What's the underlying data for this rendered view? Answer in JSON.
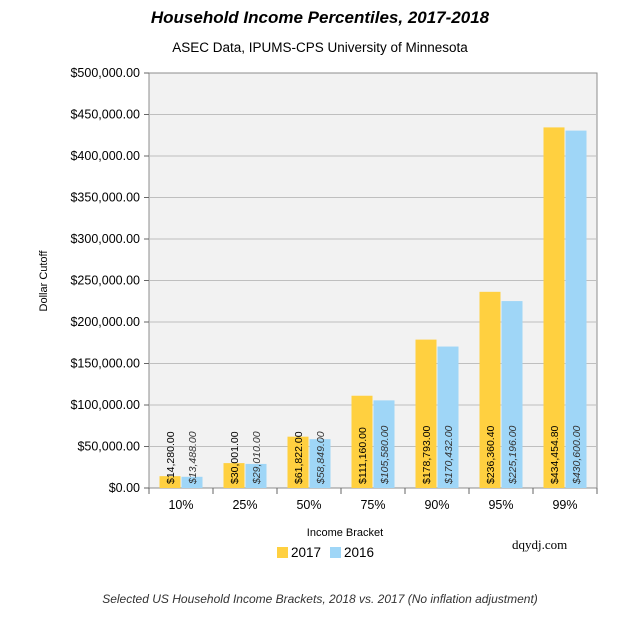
{
  "header": {
    "title": "Household Income Percentiles, 2017-2018",
    "subtitle": "ASEC Data, IPUMS-CPS University of Minnesota"
  },
  "watermark": "dqydj.com",
  "caption": "Selected US Household Income Brackets, 2018 vs. 2017 (No inflation adjustment)",
  "colors": {
    "series2017": "#ffd040",
    "series2016": "#9fd6f7",
    "plot_bg": "#f2f2f2",
    "grid": "#bfbfbf"
  },
  "chart_data": {
    "type": "bar",
    "title": "Household Income Percentiles, 2017-2018",
    "subtitle": "ASEC Data, IPUMS-CPS University of Minnesota",
    "xlabel": "Income Bracket",
    "ylabel": "Dollar Cutoff",
    "ylim": [
      0,
      500000
    ],
    "yticks": [
      0,
      50000,
      100000,
      150000,
      200000,
      250000,
      300000,
      350000,
      400000,
      450000,
      500000
    ],
    "ytick_labels": [
      "$0.00",
      "$50,000.00",
      "$100,000.00",
      "$150,000.00",
      "$200,000.00",
      "$250,000.00",
      "$300,000.00",
      "$350,000.00",
      "$400,000.00",
      "$450,000.00",
      "$500,000.00"
    ],
    "categories": [
      "10%",
      "25%",
      "50%",
      "75%",
      "90%",
      "95%",
      "99%"
    ],
    "grid": true,
    "legend": "bottom-center",
    "series": [
      {
        "name": "2017",
        "values": [
          14280,
          30001,
          61822,
          111160,
          178793,
          236360.4,
          434454.8
        ],
        "labels": [
          "$14,280.00",
          "$30,001.00",
          "$61,822.00",
          "$111,160.00",
          "$178,793.00",
          "$236,360.40",
          "$434,454.80"
        ]
      },
      {
        "name": "2016",
        "values": [
          13488,
          29010,
          58849,
          105580,
          170432,
          225196,
          430600
        ],
        "labels": [
          "$13,488.00",
          "$29,010.00",
          "$58,849.00",
          "$105,580.00",
          "$170,432.00",
          "$225,196.00",
          "$430,600.00"
        ]
      }
    ]
  }
}
